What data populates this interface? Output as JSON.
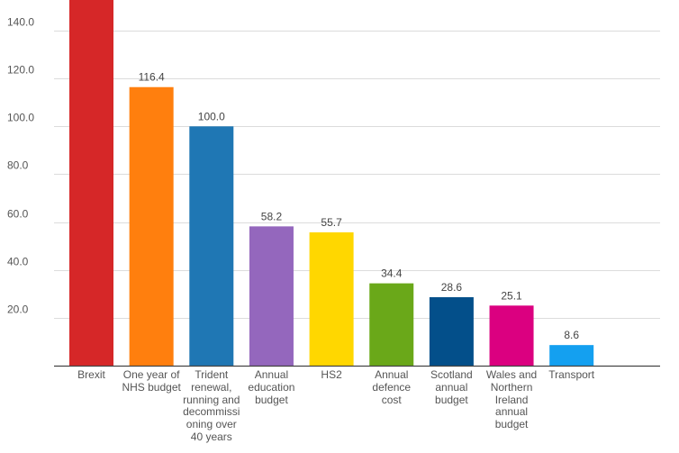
{
  "chart_data": {
    "type": "bar",
    "title": "",
    "xlabel": "",
    "ylabel": "",
    "ylim": [
      0,
      140
    ],
    "grid": true,
    "y_ticks": [
      "20.0",
      "40.0",
      "60.0",
      "80.0",
      "100.0",
      "120.0",
      "140.0"
    ],
    "categories": [
      "Brexit",
      "One year of\nNHS budget",
      "Trident\nrenewal,\nrunning and\ndecommissi\noning over\n40 years",
      "Annual\neducation\nbudget",
      "HS2",
      "Annual\ndefence\ncost",
      "Scotland\nannual\nbudget",
      "Wales and\nNorthern\nIreland\nannual\nbudget",
      "Transport"
    ],
    "values": [
      null,
      116.4,
      100.0,
      58.2,
      55.7,
      34.4,
      28.6,
      25.1,
      8.6
    ],
    "data_labels": [
      "",
      "116.4",
      "100.0",
      "58.2",
      "55.7",
      "34.4",
      "28.6",
      "25.1",
      "8.6"
    ],
    "colors": [
      "#d62728",
      "#ff7f0e",
      "#1f77b4",
      "#9467bd",
      "#ffd700",
      "#6aa819",
      "#034f8a",
      "#db0080",
      "#14a0f0"
    ]
  }
}
